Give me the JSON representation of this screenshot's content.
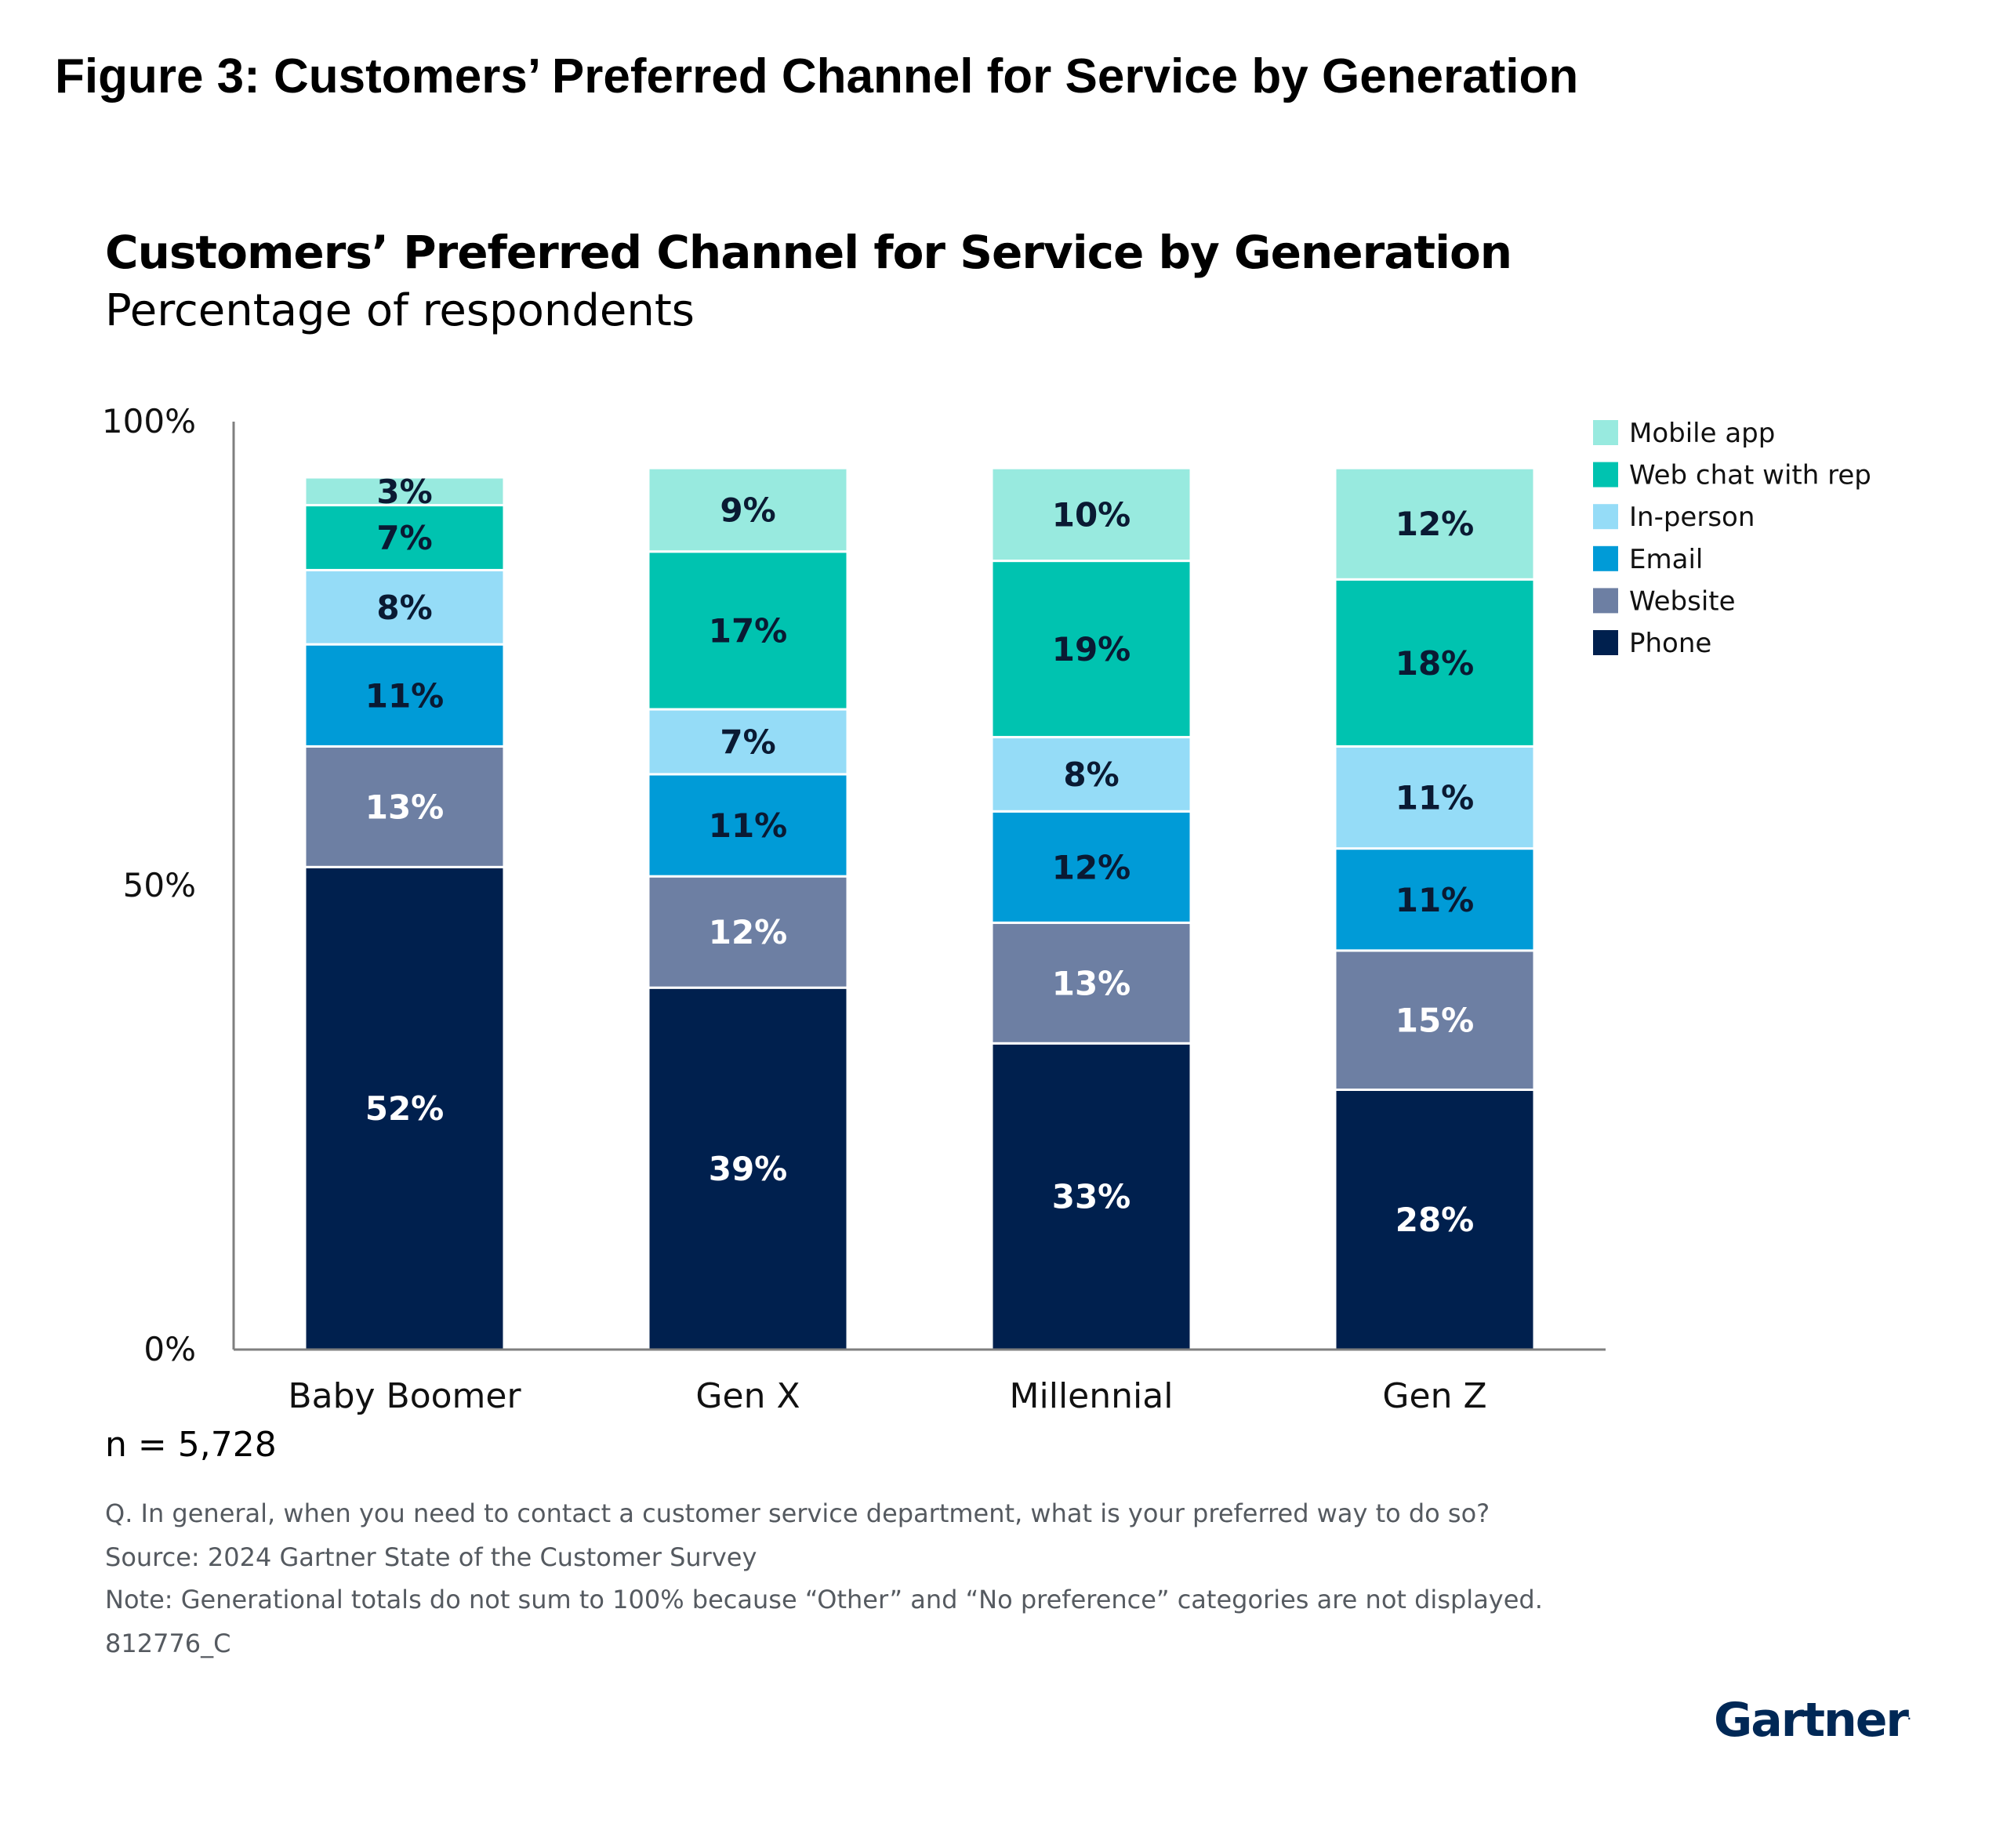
{
  "figure_title": "Figure 3: Customers’ Preferred Channel for Service by Generation",
  "chart_data": {
    "type": "bar",
    "stacked": true,
    "title": "Customers’ Preferred Channel for Service by Generation",
    "subtitle": "Percentage of respondents",
    "categories": [
      "Baby Boomer",
      "Gen X",
      "Millennial",
      "Gen Z"
    ],
    "ylim": [
      0,
      100
    ],
    "yticks": [
      0,
      50,
      100
    ],
    "ytick_labels": [
      "0%",
      "50%",
      "100%"
    ],
    "legend_position": "top-right",
    "series": [
      {
        "name": "Phone",
        "color": "#00204e",
        "label_color": "#ffffff",
        "values": [
          52,
          39,
          33,
          28
        ]
      },
      {
        "name": "Website",
        "color": "#6d7fa3",
        "label_color": "#ffffff",
        "values": [
          13,
          12,
          13,
          15
        ]
      },
      {
        "name": "Email",
        "color": "#009bd7",
        "label_color": "#0a1a33",
        "values": [
          11,
          11,
          12,
          11
        ]
      },
      {
        "name": "In-person",
        "color": "#95dcf7",
        "label_color": "#0a1a33",
        "values": [
          8,
          7,
          8,
          11
        ]
      },
      {
        "name": "Web chat with rep",
        "color": "#00c3b0",
        "label_color": "#0a1a33",
        "values": [
          7,
          17,
          19,
          18
        ]
      },
      {
        "name": "Mobile app",
        "color": "#98eadf",
        "label_color": "#0a1a33",
        "values": [
          3,
          9,
          10,
          12
        ]
      }
    ],
    "legend_order": [
      "Mobile app",
      "Web chat with rep",
      "In-person",
      "Email",
      "Website",
      "Phone"
    ]
  },
  "sample_size": "n = 5,728",
  "notes": {
    "question": "Q. In general, when you need to contact a customer service department, what is your preferred way to do so?",
    "source": "Source: 2024 Gartner State of the Customer Survey",
    "note": "Note: Generational totals do not sum to 100% because “Other” and “No preference” categories are not displayed.",
    "id": "812776_C"
  },
  "logo": {
    "text": "Gartner",
    "mark": "."
  }
}
